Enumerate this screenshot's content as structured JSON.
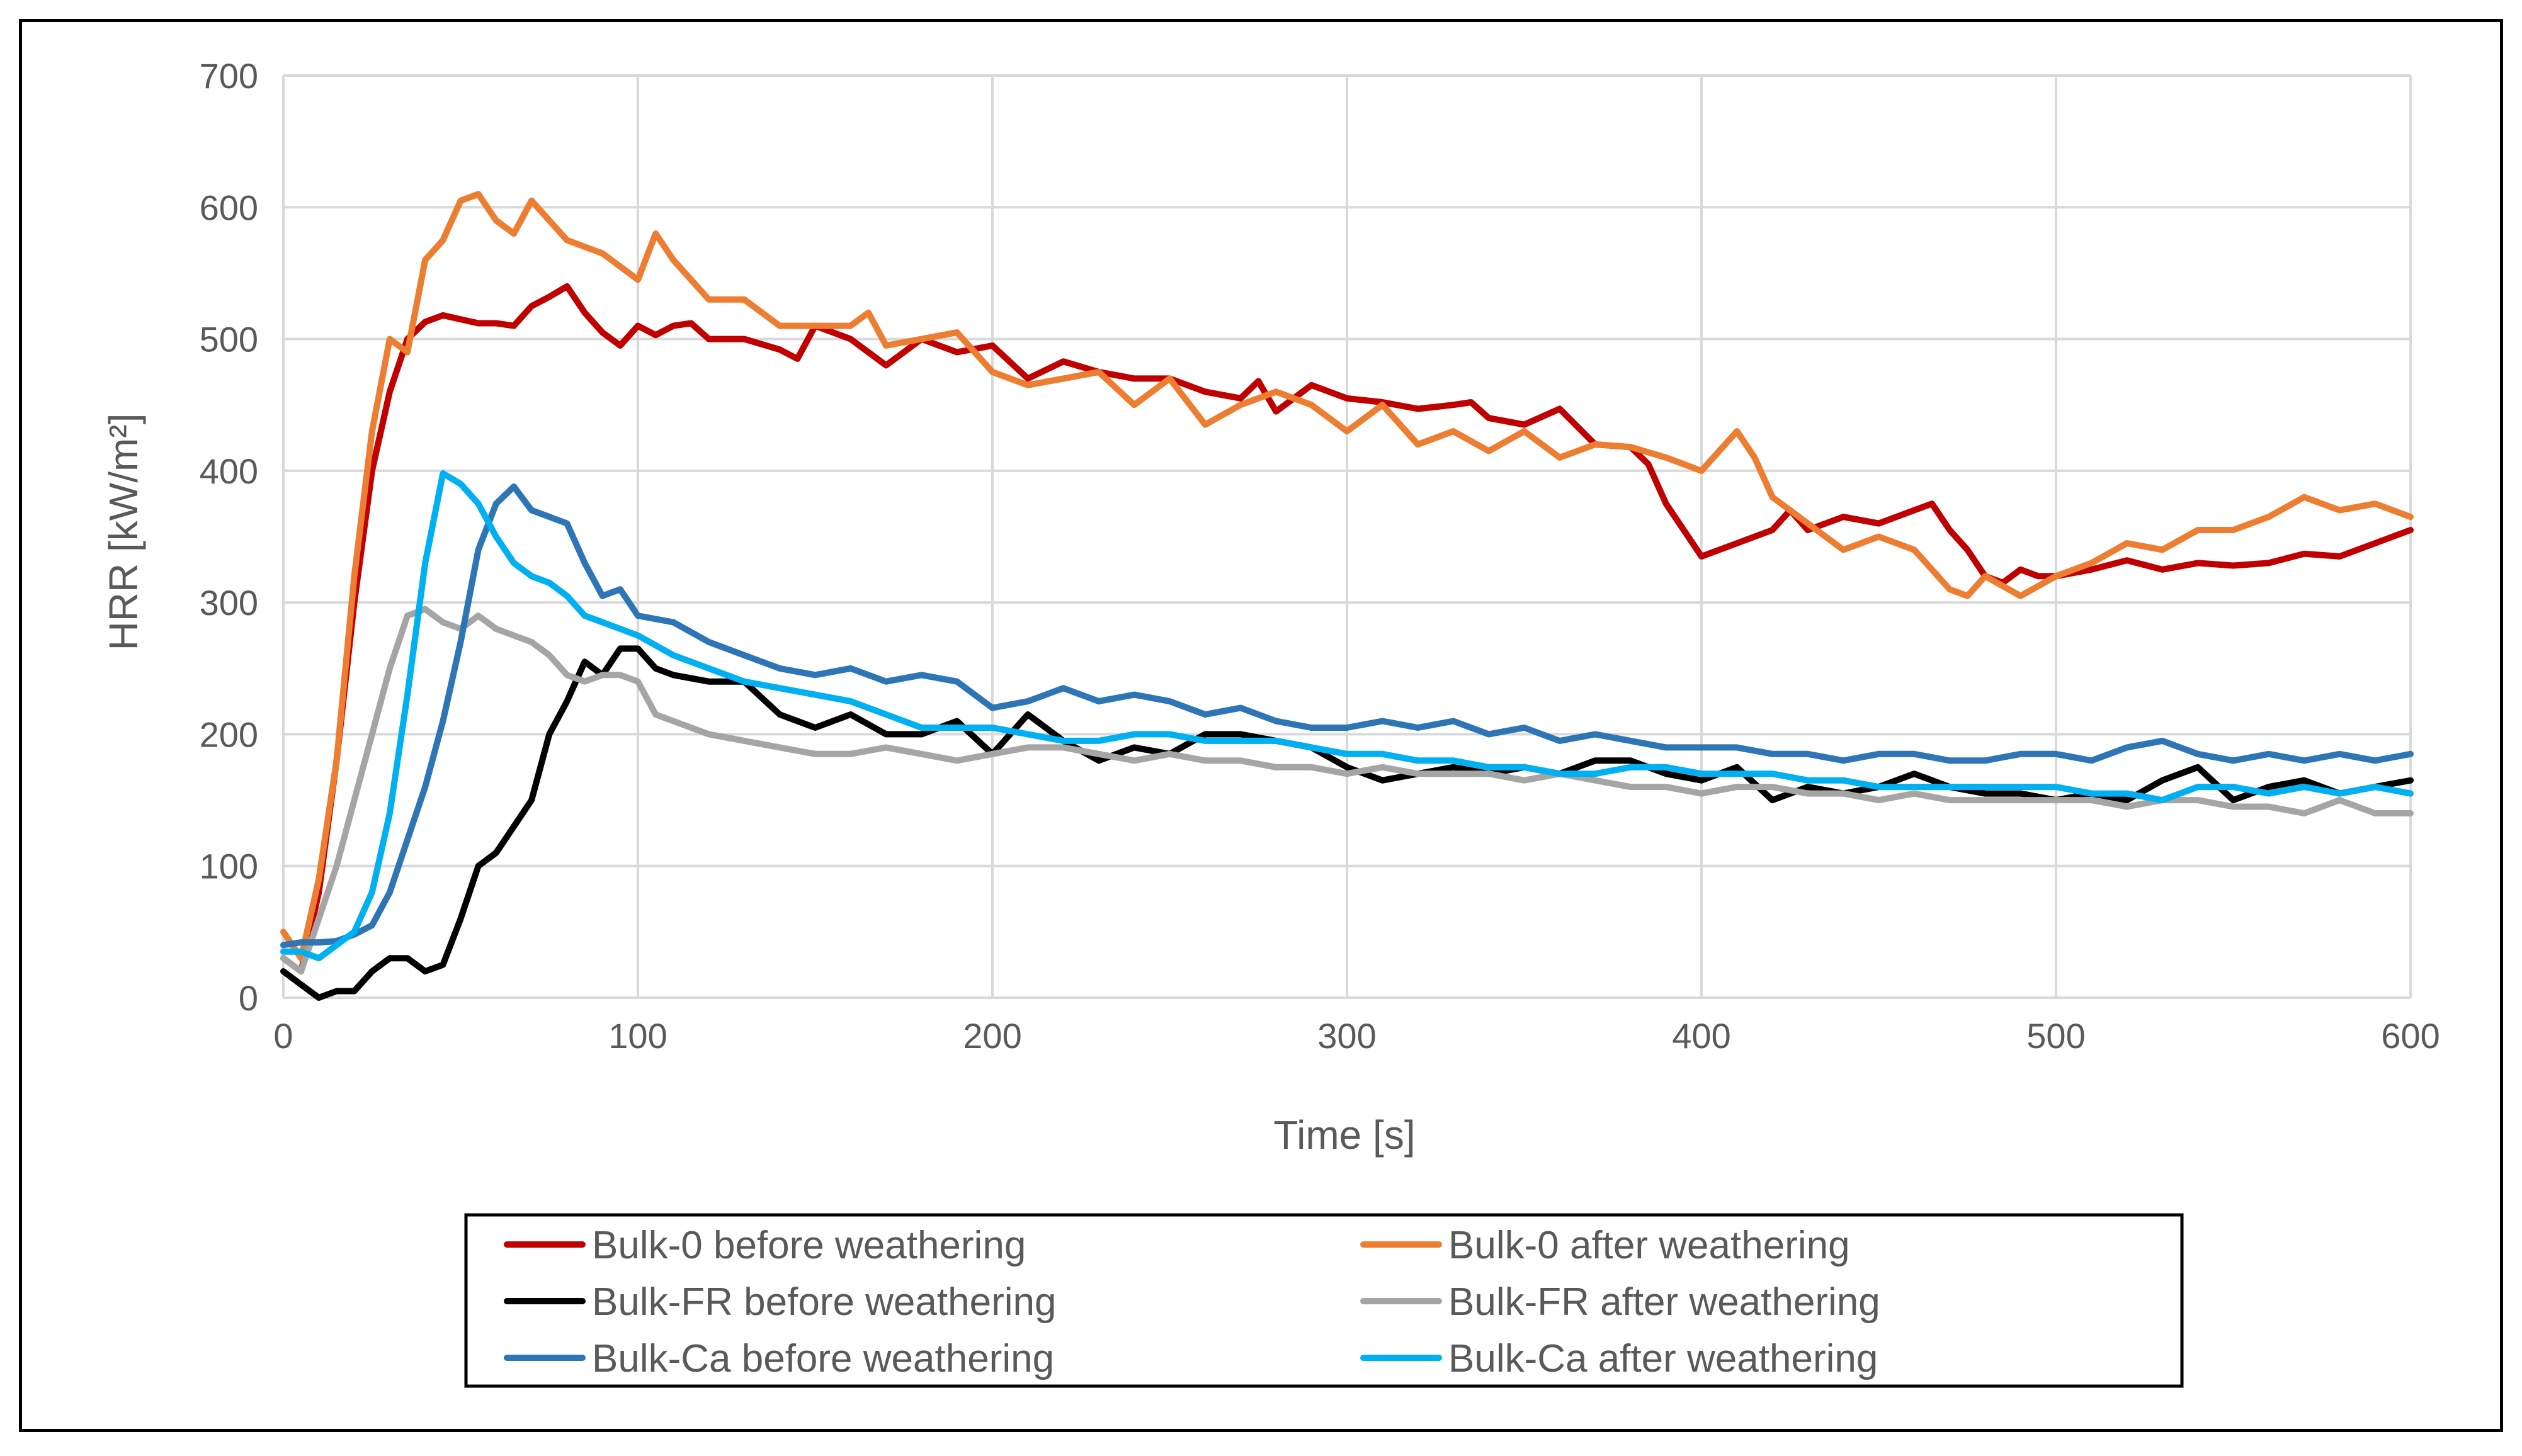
{
  "chart_data": {
    "type": "line",
    "title": "",
    "xlabel": "Time [s]",
    "ylabel": "HRR [kW/m²]",
    "xlim": [
      0,
      600
    ],
    "ylim": [
      0,
      700
    ],
    "x_ticks": [
      0,
      100,
      200,
      300,
      400,
      500,
      600
    ],
    "y_ticks": [
      0,
      100,
      200,
      300,
      400,
      500,
      600,
      700
    ],
    "x_tick_labels": [
      "0",
      "100",
      "200",
      "300",
      "400",
      "500",
      "600"
    ],
    "y_tick_labels": [
      "0",
      "100",
      "200",
      "300",
      "400",
      "500",
      "600",
      "700"
    ],
    "grid": true,
    "legend_position": "bottom",
    "series": [
      {
        "name": "Bulk-0 before weathering",
        "color": "#c00000",
        "x": [
          0,
          5,
          10,
          15,
          20,
          25,
          30,
          35,
          40,
          45,
          50,
          55,
          60,
          65,
          70,
          75,
          80,
          85,
          90,
          95,
          100,
          105,
          110,
          115,
          120,
          130,
          140,
          145,
          150,
          160,
          170,
          180,
          190,
          200,
          210,
          220,
          230,
          240,
          250,
          260,
          270,
          275,
          280,
          290,
          300,
          310,
          320,
          330,
          335,
          340,
          350,
          360,
          370,
          380,
          385,
          390,
          395,
          400,
          410,
          420,
          425,
          430,
          440,
          450,
          460,
          465,
          470,
          475,
          480,
          485,
          490,
          495,
          500,
          510,
          520,
          530,
          540,
          550,
          560,
          570,
          580,
          590,
          600
        ],
        "y": [
          30,
          20,
          80,
          180,
          300,
          400,
          460,
          500,
          513,
          518,
          515,
          512,
          512,
          510,
          525,
          532,
          540,
          520,
          505,
          495,
          510,
          503,
          510,
          512,
          500,
          500,
          492,
          485,
          510,
          500,
          480,
          500,
          490,
          495,
          470,
          483,
          475,
          470,
          470,
          460,
          455,
          468,
          445,
          465,
          455,
          452,
          447,
          450,
          452,
          440,
          435,
          447,
          420,
          418,
          405,
          375,
          355,
          335,
          345,
          355,
          370,
          355,
          365,
          360,
          370,
          375,
          355,
          340,
          320,
          315,
          325,
          320,
          320,
          325,
          332,
          325,
          330,
          328,
          330,
          337,
          335,
          345,
          355
        ]
      },
      {
        "name": "Bulk-0 after weathering",
        "color": "#ed7d31",
        "x": [
          0,
          5,
          10,
          15,
          20,
          25,
          30,
          35,
          40,
          45,
          50,
          55,
          60,
          65,
          70,
          75,
          80,
          90,
          100,
          105,
          110,
          120,
          130,
          140,
          150,
          160,
          165,
          170,
          180,
          190,
          200,
          210,
          220,
          230,
          240,
          250,
          260,
          270,
          280,
          290,
          300,
          310,
          320,
          330,
          340,
          350,
          360,
          370,
          380,
          390,
          400,
          410,
          415,
          420,
          430,
          440,
          450,
          460,
          470,
          475,
          480,
          490,
          500,
          510,
          520,
          530,
          540,
          550,
          560,
          570,
          580,
          590,
          600
        ],
        "y": [
          50,
          30,
          90,
          180,
          320,
          430,
          500,
          490,
          560,
          575,
          605,
          610,
          590,
          580,
          605,
          590,
          575,
          565,
          545,
          580,
          560,
          530,
          530,
          510,
          510,
          510,
          520,
          495,
          500,
          505,
          475,
          465,
          470,
          475,
          450,
          470,
          435,
          450,
          460,
          450,
          430,
          450,
          420,
          430,
          415,
          430,
          410,
          420,
          418,
          410,
          400,
          430,
          410,
          380,
          360,
          340,
          350,
          340,
          310,
          305,
          320,
          305,
          320,
          330,
          345,
          340,
          355,
          355,
          365,
          380,
          370,
          375,
          365
        ]
      },
      {
        "name": "Bulk-FR before weathering",
        "color": "#000000",
        "x": [
          0,
          5,
          10,
          15,
          20,
          25,
          30,
          35,
          40,
          45,
          50,
          55,
          60,
          65,
          70,
          75,
          80,
          85,
          90,
          95,
          100,
          105,
          110,
          120,
          130,
          140,
          150,
          160,
          170,
          180,
          190,
          200,
          210,
          220,
          230,
          240,
          250,
          260,
          270,
          280,
          290,
          300,
          310,
          320,
          330,
          340,
          350,
          360,
          370,
          380,
          390,
          400,
          410,
          420,
          430,
          440,
          450,
          460,
          470,
          480,
          490,
          500,
          510,
          520,
          530,
          540,
          550,
          560,
          570,
          580,
          590,
          600
        ],
        "y": [
          20,
          10,
          0,
          5,
          5,
          20,
          30,
          30,
          20,
          25,
          60,
          100,
          110,
          130,
          150,
          200,
          225,
          255,
          245,
          265,
          265,
          250,
          245,
          240,
          240,
          215,
          205,
          215,
          200,
          200,
          210,
          185,
          215,
          195,
          180,
          190,
          185,
          200,
          200,
          195,
          190,
          175,
          165,
          170,
          175,
          170,
          175,
          170,
          180,
          180,
          170,
          165,
          175,
          150,
          160,
          155,
          160,
          170,
          160,
          155,
          155,
          150,
          155,
          150,
          165,
          175,
          150,
          160,
          165,
          155,
          160,
          165
        ]
      },
      {
        "name": "Bulk-FR after weathering",
        "color": "#a5a5a5",
        "x": [
          0,
          5,
          10,
          15,
          20,
          25,
          30,
          35,
          40,
          45,
          50,
          55,
          60,
          65,
          70,
          75,
          80,
          85,
          90,
          95,
          100,
          105,
          110,
          120,
          130,
          140,
          150,
          160,
          170,
          180,
          190,
          200,
          210,
          220,
          230,
          240,
          250,
          260,
          270,
          280,
          290,
          300,
          310,
          320,
          330,
          340,
          350,
          360,
          370,
          380,
          390,
          400,
          410,
          420,
          430,
          440,
          450,
          460,
          470,
          480,
          490,
          500,
          510,
          520,
          530,
          540,
          550,
          560,
          570,
          580,
          590,
          600
        ],
        "y": [
          30,
          20,
          60,
          100,
          150,
          200,
          250,
          290,
          295,
          285,
          280,
          290,
          280,
          275,
          270,
          260,
          245,
          240,
          245,
          245,
          240,
          215,
          210,
          200,
          195,
          190,
          185,
          185,
          190,
          185,
          180,
          185,
          190,
          190,
          185,
          180,
          185,
          180,
          180,
          175,
          175,
          170,
          175,
          170,
          170,
          170,
          165,
          170,
          165,
          160,
          160,
          155,
          160,
          160,
          155,
          155,
          150,
          155,
          150,
          150,
          150,
          150,
          150,
          145,
          150,
          150,
          145,
          145,
          140,
          150,
          140,
          140
        ]
      },
      {
        "name": "Bulk-Ca before weathering",
        "color": "#2e75b6",
        "x": [
          0,
          5,
          10,
          15,
          20,
          25,
          30,
          35,
          40,
          45,
          50,
          55,
          60,
          65,
          70,
          75,
          80,
          85,
          90,
          95,
          100,
          110,
          120,
          130,
          140,
          150,
          160,
          170,
          180,
          190,
          200,
          210,
          220,
          230,
          240,
          250,
          260,
          270,
          280,
          290,
          300,
          310,
          320,
          330,
          340,
          350,
          360,
          370,
          380,
          390,
          400,
          410,
          420,
          430,
          440,
          450,
          460,
          470,
          480,
          490,
          500,
          510,
          520,
          530,
          540,
          550,
          560,
          570,
          580,
          590,
          600
        ],
        "y": [
          40,
          42,
          42,
          43,
          48,
          55,
          80,
          120,
          160,
          210,
          270,
          340,
          375,
          388,
          370,
          365,
          360,
          330,
          305,
          310,
          290,
          285,
          270,
          260,
          250,
          245,
          250,
          240,
          245,
          240,
          220,
          225,
          235,
          225,
          230,
          225,
          215,
          220,
          210,
          205,
          205,
          210,
          205,
          210,
          200,
          205,
          195,
          200,
          195,
          190,
          190,
          190,
          185,
          185,
          180,
          185,
          185,
          180,
          180,
          185,
          185,
          180,
          190,
          195,
          185,
          180,
          185,
          180,
          185,
          180,
          185
        ]
      },
      {
        "name": "Bulk-Ca after weathering",
        "color": "#00b0f0",
        "x": [
          0,
          5,
          10,
          15,
          20,
          25,
          30,
          35,
          40,
          45,
          50,
          55,
          60,
          65,
          70,
          75,
          80,
          85,
          90,
          95,
          100,
          110,
          120,
          130,
          140,
          150,
          160,
          170,
          180,
          190,
          200,
          210,
          220,
          230,
          240,
          250,
          260,
          270,
          280,
          290,
          300,
          310,
          320,
          330,
          340,
          350,
          360,
          370,
          380,
          390,
          400,
          410,
          420,
          430,
          440,
          450,
          460,
          470,
          480,
          490,
          500,
          510,
          520,
          530,
          540,
          550,
          560,
          570,
          580,
          590,
          600
        ],
        "y": [
          35,
          35,
          30,
          40,
          50,
          80,
          140,
          230,
          330,
          398,
          390,
          375,
          350,
          330,
          320,
          315,
          305,
          290,
          285,
          280,
          275,
          260,
          250,
          240,
          235,
          230,
          225,
          215,
          205,
          205,
          205,
          200,
          195,
          195,
          200,
          200,
          195,
          195,
          195,
          190,
          185,
          185,
          180,
          180,
          175,
          175,
          170,
          170,
          175,
          175,
          170,
          170,
          170,
          165,
          165,
          160,
          160,
          160,
          160,
          160,
          160,
          155,
          155,
          150,
          160,
          160,
          155,
          160,
          155,
          160,
          155
        ]
      }
    ]
  }
}
